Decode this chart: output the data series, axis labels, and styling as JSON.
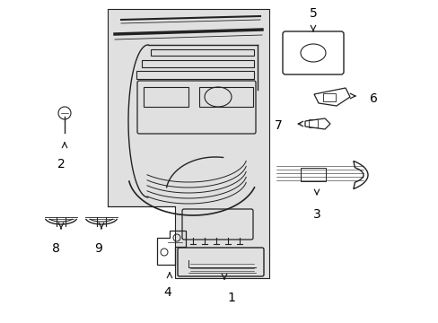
{
  "bg_color": "#ffffff",
  "panel_fill": "#e0e0e0",
  "line_color": "#222222",
  "label_color": "#000000",
  "font_size": 9,
  "figsize": [
    4.89,
    3.6
  ],
  "dpi": 100
}
